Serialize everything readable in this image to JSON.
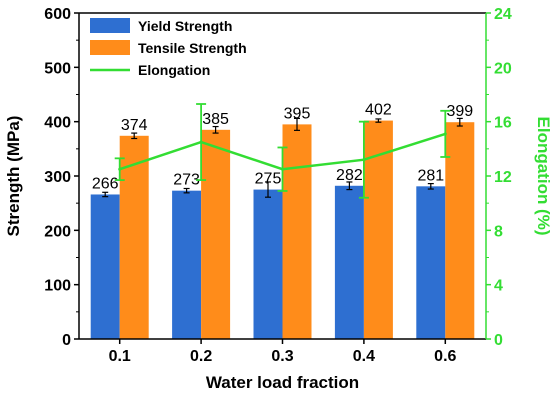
{
  "chart_data": {
    "type": "bar",
    "categories": [
      "0.1",
      "0.2",
      "0.3",
      "0.4",
      "0.6"
    ],
    "xlabel": "Water load fraction",
    "ylabel": "Strength (MPa)",
    "ylabel_right": "Elongation (%)",
    "ylim": [
      0,
      600
    ],
    "yticks": [
      0,
      100,
      200,
      300,
      400,
      500,
      600
    ],
    "ylim_right": [
      0,
      24
    ],
    "yticks_right": [
      0,
      4,
      8,
      12,
      16,
      20,
      24
    ],
    "series": [
      {
        "name": "Yield Strength",
        "kind": "bar",
        "color": "#2e6fd1",
        "values": [
          266,
          273,
          275,
          282,
          281
        ],
        "errors": [
          4,
          4,
          14,
          7,
          5
        ],
        "value_labels": [
          "266",
          "273",
          "275",
          "282",
          "281"
        ]
      },
      {
        "name": "Tensile Strength",
        "kind": "bar",
        "color": "#ff8c1a",
        "values": [
          374,
          385,
          395,
          402,
          399
        ],
        "errors": [
          5,
          6,
          11,
          3,
          7
        ],
        "value_labels": [
          "374",
          "385",
          "395",
          "402",
          "399"
        ]
      },
      {
        "name": "Elongation",
        "kind": "line",
        "axis": "right",
        "color": "#33dd33",
        "values": [
          12.5,
          14.5,
          12.5,
          13.2,
          15.1
        ],
        "errors": [
          0.8,
          2.8,
          1.6,
          2.8,
          1.7
        ]
      }
    ],
    "legend_position": "top-left",
    "grid": false
  }
}
